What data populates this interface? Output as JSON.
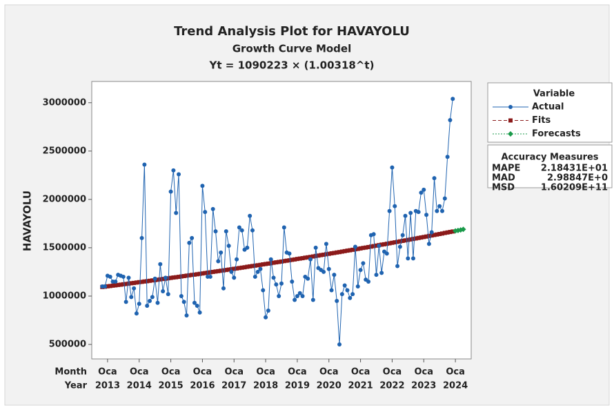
{
  "chart_data": {
    "type": "line",
    "title": "Trend Analysis Plot for HAVAYOLU",
    "subtitle": "Growth Curve Model",
    "equation": "Yt = 1090223 × (1.00318^t)",
    "ylabel": "HAVAYOLU",
    "x_row_labels": [
      "Month",
      "Year"
    ],
    "x": [
      1,
      2,
      3,
      4,
      5,
      6,
      7,
      8,
      9,
      10,
      11,
      12,
      13,
      14,
      15,
      16,
      17,
      18,
      19,
      20,
      21,
      22,
      23,
      24,
      25,
      26,
      27,
      28,
      29,
      30,
      31,
      32,
      33,
      34,
      35,
      36,
      37,
      38,
      39,
      40,
      41,
      42,
      43,
      44,
      45,
      46,
      47,
      48,
      49,
      50,
      51,
      52,
      53,
      54,
      55,
      56,
      57,
      58,
      59,
      60,
      61,
      62,
      63,
      64,
      65,
      66,
      67,
      68,
      69,
      70,
      71,
      72,
      73,
      74,
      75,
      76,
      77,
      78,
      79,
      80,
      81,
      82,
      83,
      84,
      85,
      86,
      87,
      88,
      89,
      90,
      91,
      92,
      93,
      94,
      95,
      96,
      97,
      98,
      99,
      100,
      101,
      102,
      103,
      104,
      105,
      106,
      107,
      108,
      109,
      110,
      111,
      112,
      113,
      114,
      115,
      116,
      117,
      118,
      119,
      120,
      121,
      122,
      123,
      124,
      125,
      126,
      127,
      128,
      129,
      130,
      131,
      132,
      133,
      134
    ],
    "series": [
      {
        "name": "Actual",
        "color": "#1f63b0",
        "marker": "circle",
        "dash": "solid",
        "values": [
          1100000,
          1100000,
          1210000,
          1200000,
          1150000,
          1150000,
          1220000,
          1210000,
          1200000,
          940000,
          1190000,
          990000,
          1080000,
          820000,
          920000,
          1600000,
          2360000,
          900000,
          950000,
          990000,
          1180000,
          930000,
          1330000,
          1050000,
          1190000,
          1020000,
          2080000,
          2300000,
          1860000,
          2260000,
          1000000,
          940000,
          800000,
          1550000,
          1600000,
          930000,
          900000,
          830000,
          2140000,
          1870000,
          1200000,
          1200000,
          1900000,
          1670000,
          1360000,
          1450000,
          1080000,
          1670000,
          1520000,
          1250000,
          1190000,
          1380000,
          1710000,
          1680000,
          1480000,
          1500000,
          1830000,
          1680000,
          1200000,
          1250000,
          1280000,
          1060000,
          780000,
          850000,
          1380000,
          1190000,
          1120000,
          1000000,
          1130000,
          1710000,
          1450000,
          1440000,
          1150000,
          960000,
          1000000,
          1030000,
          1000000,
          1200000,
          1180000,
          1380000,
          960000,
          1500000,
          1290000,
          1270000,
          1250000,
          1540000,
          1280000,
          1060000,
          1220000,
          950000,
          500000,
          1020000,
          1110000,
          1060000,
          980000,
          1020000,
          1510000,
          1100000,
          1270000,
          1340000,
          1170000,
          1150000,
          1630000,
          1640000,
          1220000,
          1520000,
          1240000,
          1460000,
          1440000,
          1880000,
          2330000,
          1930000,
          1310000,
          1510000,
          1630000,
          1830000,
          1390000,
          1860000,
          1390000,
          1880000,
          1870000,
          2070000,
          2100000,
          1840000,
          1540000,
          1660000,
          2220000,
          1880000,
          1930000,
          1880000,
          2010000,
          2440000,
          2820000,
          3040000
        ]
      },
      {
        "name": "Fits",
        "color": "#8b1a1a",
        "marker": "square",
        "dash": "dashed",
        "values": [
          1094000,
          1097000,
          1101000,
          1104000,
          1108000,
          1111000,
          1115000,
          1118000,
          1122000,
          1125000,
          1129000,
          1133000,
          1136000,
          1140000,
          1144000,
          1147000,
          1151000,
          1154000,
          1158000,
          1162000,
          1165000,
          1169000,
          1173000,
          1177000,
          1180000,
          1184000,
          1188000,
          1192000,
          1195000,
          1199000,
          1203000,
          1207000,
          1211000,
          1215000,
          1219000,
          1222000,
          1226000,
          1230000,
          1234000,
          1238000,
          1242000,
          1246000,
          1250000,
          1254000,
          1258000,
          1262000,
          1266000,
          1270000,
          1274000,
          1278000,
          1282000,
          1286000,
          1290000,
          1294000,
          1298000,
          1303000,
          1307000,
          1311000,
          1315000,
          1319000,
          1323000,
          1328000,
          1332000,
          1336000,
          1340000,
          1345000,
          1349000,
          1353000,
          1357000,
          1362000,
          1366000,
          1370000,
          1375000,
          1379000,
          1384000,
          1388000,
          1392000,
          1397000,
          1401000,
          1405000,
          1410000,
          1415000,
          1419000,
          1424000,
          1428000,
          1433000,
          1437000,
          1442000,
          1446000,
          1451000,
          1455000,
          1460000,
          1465000,
          1470000,
          1474000,
          1479000,
          1484000,
          1488000,
          1493000,
          1498000,
          1502000,
          1507000,
          1512000,
          1517000,
          1522000,
          1527000,
          1532000,
          1536000,
          1541000,
          1546000,
          1551000,
          1556000,
          1561000,
          1566000,
          1571000,
          1576000,
          1581000,
          1586000,
          1591000,
          1596000,
          1601000,
          1606000,
          1611000,
          1616000,
          1622000,
          1627000,
          1632000,
          1637000,
          1642000,
          1647000,
          1653000,
          1658000,
          1663000,
          1668000
        ]
      },
      {
        "name": "Forecasts",
        "color": "#1a9a4a",
        "marker": "diamond",
        "dash": "dotted",
        "x": [
          135,
          136,
          137,
          138
        ],
        "values": [
          1674000,
          1679000,
          1684000,
          1690000
        ]
      }
    ],
    "xlim": [
      -3,
      141
    ],
    "xticks": [
      {
        "value": 3,
        "label": "Oca",
        "year": "2013"
      },
      {
        "value": 15,
        "label": "Oca",
        "year": "2014"
      },
      {
        "value": 27,
        "label": "Oca",
        "year": "2015"
      },
      {
        "value": 39,
        "label": "Oca",
        "year": "2016"
      },
      {
        "value": 51,
        "label": "Oca",
        "year": "2017"
      },
      {
        "value": 63,
        "label": "Oca",
        "year": "2018"
      },
      {
        "value": 75,
        "label": "Oca",
        "year": "2019"
      },
      {
        "value": 87,
        "label": "Oca",
        "year": "2020"
      },
      {
        "value": 99,
        "label": "Oca",
        "year": "2021"
      },
      {
        "value": 111,
        "label": "Oca",
        "year": "2022"
      },
      {
        "value": 123,
        "label": "Oca",
        "year": "2023"
      },
      {
        "value": 135,
        "label": "Oca",
        "year": "2024"
      }
    ],
    "ylim": [
      350000,
      3220000
    ],
    "yticks": [
      500000,
      1000000,
      1500000,
      2000000,
      2500000,
      3000000
    ],
    "legend_title": "Variable",
    "accuracy_title": "Accuracy Measures",
    "accuracy": [
      {
        "name": "MAPE",
        "value": "2.18431E+01"
      },
      {
        "name": "MAD",
        "value": "2.98847E+0"
      },
      {
        "name": "MSD",
        "value": "1.60209E+11"
      }
    ]
  }
}
